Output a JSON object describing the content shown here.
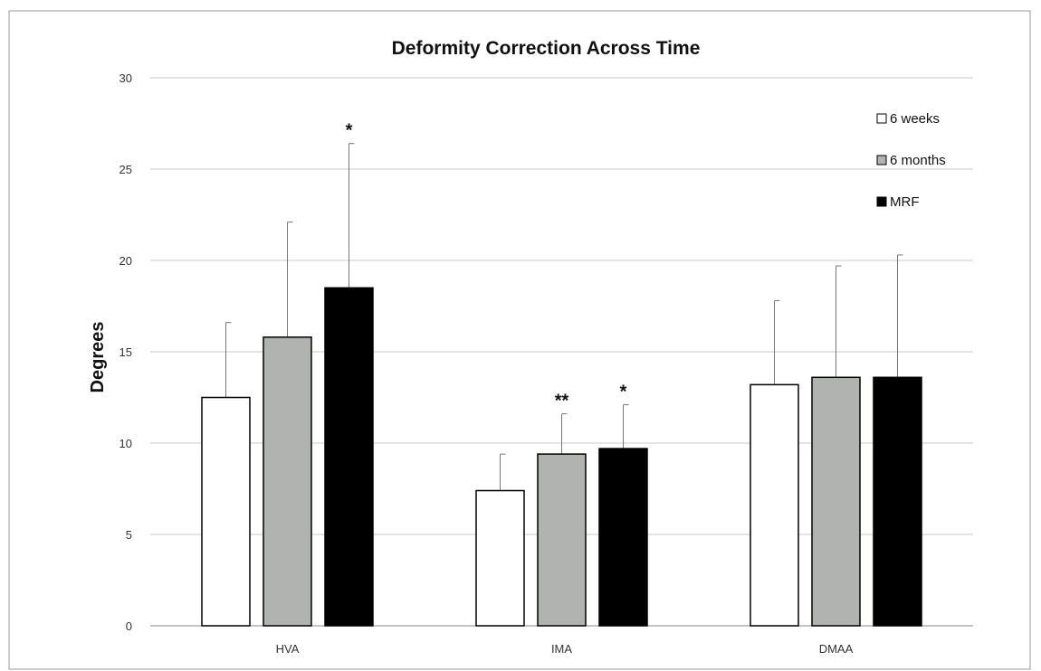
{
  "chart_data": {
    "type": "bar",
    "title": "Deformity Correction Across Time",
    "xlabel": "",
    "ylabel": "Degrees",
    "ylim": [
      0,
      30
    ],
    "yticks": [
      0,
      5,
      10,
      15,
      20,
      25,
      30
    ],
    "grid": true,
    "legend_position": "top-right",
    "categories": [
      "HVA",
      "IMA",
      "DMAA"
    ],
    "series": [
      {
        "name": "6 weeks",
        "color": "#ffffff",
        "values": [
          12.5,
          7.4,
          13.2
        ],
        "error": [
          4.1,
          2.0,
          4.6
        ],
        "annotations": [
          "",
          "",
          ""
        ]
      },
      {
        "name": "6 months",
        "color": "#b1b3b1",
        "values": [
          15.8,
          9.4,
          13.6
        ],
        "error": [
          6.3,
          2.2,
          6.1
        ],
        "annotations": [
          "",
          "**",
          ""
        ]
      },
      {
        "name": "MRF",
        "color": "#000000",
        "values": [
          18.5,
          9.7,
          13.6
        ],
        "error": [
          7.9,
          2.4,
          6.7
        ],
        "annotations": [
          "*",
          "*",
          ""
        ]
      }
    ]
  }
}
